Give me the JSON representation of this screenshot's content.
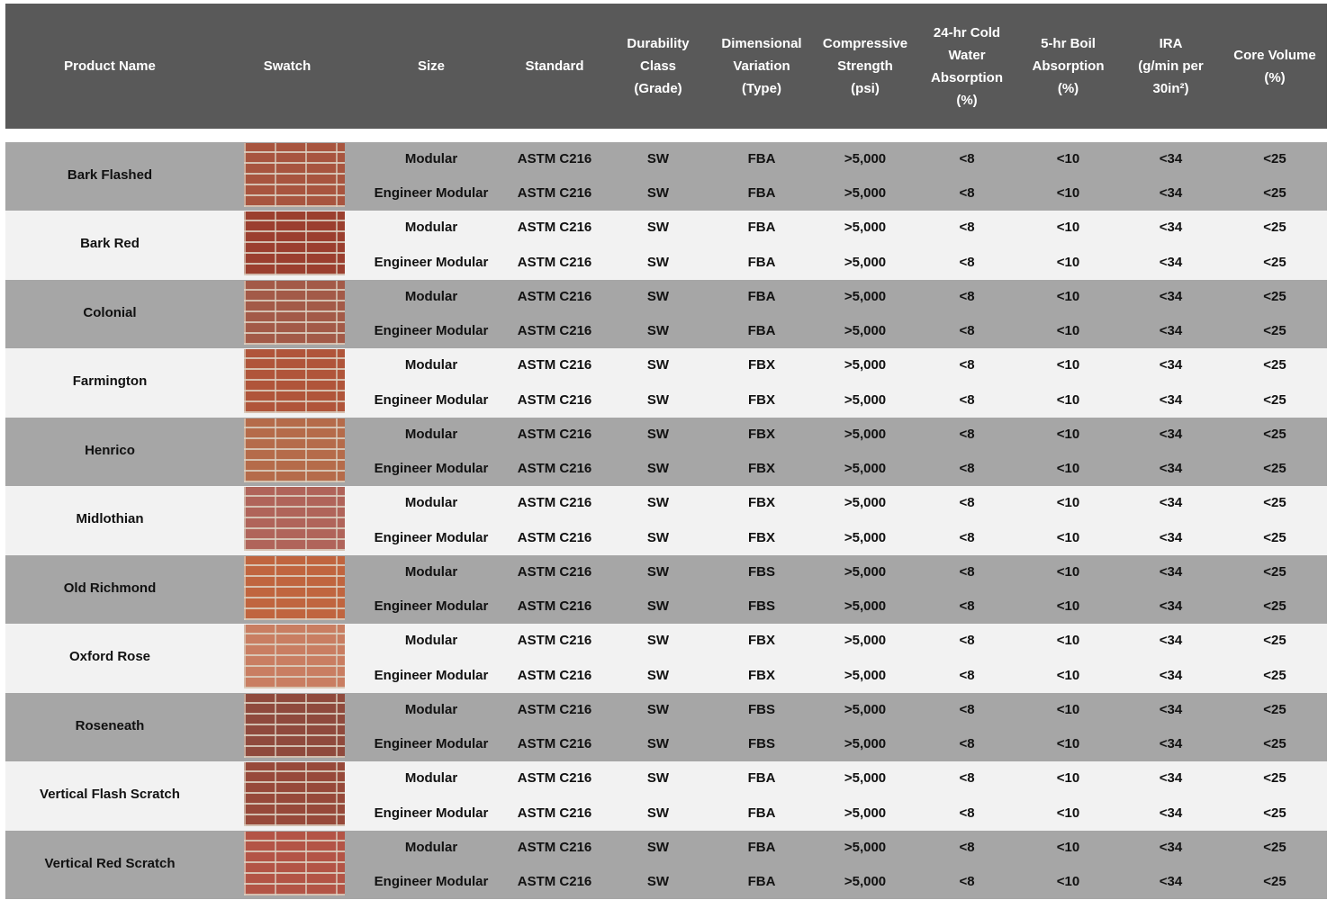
{
  "table": {
    "header": [
      [
        "Product Name"
      ],
      [
        "Swatch"
      ],
      [
        "Size"
      ],
      [
        "Standard"
      ],
      [
        "Durability",
        "Class",
        "(Grade)"
      ],
      [
        "Dimensional",
        "Variation",
        "(Type)"
      ],
      [
        "Compressive",
        "Strength",
        "(psi)"
      ],
      [
        "24-hr Cold",
        "Water",
        "Absorption",
        "(%)"
      ],
      [
        "5-hr Boil",
        "Absorption",
        "(%)"
      ],
      [
        "IRA",
        "(g/min per",
        "30in²)"
      ],
      [
        "Core Volume",
        "(%)"
      ]
    ],
    "rows": [
      {
        "name": "Bark Flashed",
        "sizes": [
          [
            "Modular",
            "ASTM C216",
            "SW",
            "FBA",
            ">5,000",
            "<8",
            "<10",
            "<34",
            "<25"
          ],
          [
            "Engineer Modular",
            "ASTM C216",
            "SW",
            "FBA",
            ">5,000",
            "<8",
            "<10",
            "<34",
            "<25"
          ]
        ]
      },
      {
        "name": "Bark Red",
        "sizes": [
          [
            "Modular",
            "ASTM C216",
            "SW",
            "FBA",
            ">5,000",
            "<8",
            "<10",
            "<34",
            "<25"
          ],
          [
            "Engineer Modular",
            "ASTM C216",
            "SW",
            "FBA",
            ">5,000",
            "<8",
            "<10",
            "<34",
            "<25"
          ]
        ]
      },
      {
        "name": "Colonial",
        "sizes": [
          [
            "Modular",
            "ASTM C216",
            "SW",
            "FBA",
            ">5,000",
            "<8",
            "<10",
            "<34",
            "<25"
          ],
          [
            "Engineer Modular",
            "ASTM C216",
            "SW",
            "FBA",
            ">5,000",
            "<8",
            "<10",
            "<34",
            "<25"
          ]
        ]
      },
      {
        "name": "Farmington",
        "sizes": [
          [
            "Modular",
            "ASTM C216",
            "SW",
            "FBX",
            ">5,000",
            "<8",
            "<10",
            "<34",
            "<25"
          ],
          [
            "Engineer Modular",
            "ASTM C216",
            "SW",
            "FBX",
            ">5,000",
            "<8",
            "<10",
            "<34",
            "<25"
          ]
        ]
      },
      {
        "name": "Henrico",
        "sizes": [
          [
            "Modular",
            "ASTM C216",
            "SW",
            "FBX",
            ">5,000",
            "<8",
            "<10",
            "<34",
            "<25"
          ],
          [
            "Engineer Modular",
            "ASTM C216",
            "SW",
            "FBX",
            ">5,000",
            "<8",
            "<10",
            "<34",
            "<25"
          ]
        ]
      },
      {
        "name": "Midlothian",
        "sizes": [
          [
            "Modular",
            "ASTM C216",
            "SW",
            "FBX",
            ">5,000",
            "<8",
            "<10",
            "<34",
            "<25"
          ],
          [
            "Engineer Modular",
            "ASTM C216",
            "SW",
            "FBX",
            ">5,000",
            "<8",
            "<10",
            "<34",
            "<25"
          ]
        ]
      },
      {
        "name": "Old Richmond",
        "sizes": [
          [
            "Modular",
            "ASTM C216",
            "SW",
            "FBS",
            ">5,000",
            "<8",
            "<10",
            "<34",
            "<25"
          ],
          [
            "Engineer Modular",
            "ASTM C216",
            "SW",
            "FBS",
            ">5,000",
            "<8",
            "<10",
            "<34",
            "<25"
          ]
        ]
      },
      {
        "name": "Oxford Rose",
        "sizes": [
          [
            "Modular",
            "ASTM C216",
            "SW",
            "FBX",
            ">5,000",
            "<8",
            "<10",
            "<34",
            "<25"
          ],
          [
            "Engineer Modular",
            "ASTM C216",
            "SW",
            "FBX",
            ">5,000",
            "<8",
            "<10",
            "<34",
            "<25"
          ]
        ]
      },
      {
        "name": "Roseneath",
        "sizes": [
          [
            "Modular",
            "ASTM C216",
            "SW",
            "FBS",
            ">5,000",
            "<8",
            "<10",
            "<34",
            "<25"
          ],
          [
            "Engineer Modular",
            "ASTM C216",
            "SW",
            "FBS",
            ">5,000",
            "<8",
            "<10",
            "<34",
            "<25"
          ]
        ]
      },
      {
        "name": "Vertical Flash Scratch",
        "sizes": [
          [
            "Modular",
            "ASTM C216",
            "SW",
            "FBA",
            ">5,000",
            "<8",
            "<10",
            "<34",
            "<25"
          ],
          [
            "Engineer Modular",
            "ASTM C216",
            "SW",
            "FBA",
            ">5,000",
            "<8",
            "<10",
            "<34",
            "<25"
          ]
        ]
      },
      {
        "name": "Vertical Red Scratch",
        "sizes": [
          [
            "Modular",
            "ASTM C216",
            "SW",
            "FBA",
            ">5,000",
            "<8",
            "<10",
            "<34",
            "<25"
          ],
          [
            "Engineer Modular",
            "ASTM C216",
            "SW",
            "FBA",
            ">5,000",
            "<8",
            "<10",
            "<34",
            "<25"
          ]
        ]
      }
    ]
  }
}
